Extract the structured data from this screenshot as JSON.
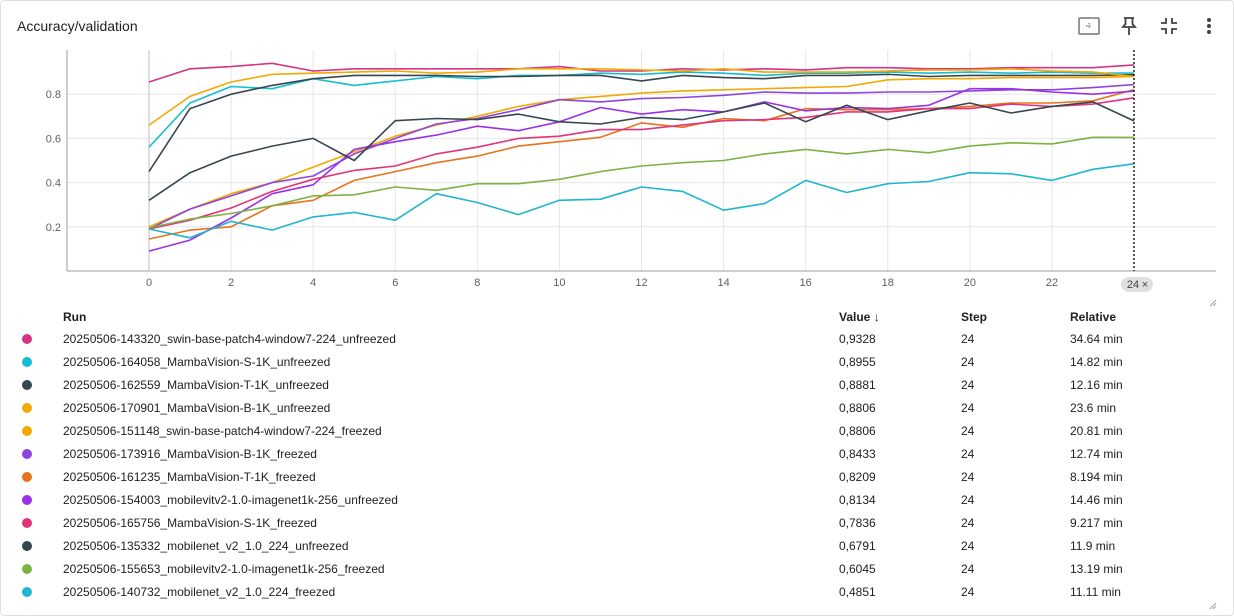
{
  "card": {
    "title": "Accuracy/validation"
  },
  "toolbar": {
    "fit_icon": "fit-domain-icon",
    "pin_icon": "pin-icon",
    "collapse_icon": "collapse-icon",
    "more_icon": "more-vert-icon"
  },
  "table": {
    "headers": {
      "run": "Run",
      "value": "Value",
      "value_sort_icon": "↓",
      "step": "Step",
      "relative": "Relative"
    },
    "rows": [
      {
        "run": "20250506-143320_swin-base-patch4-window7-224_unfreezed",
        "value": "0,9328",
        "step": "24",
        "relative": "34.64 min",
        "color": "#d63384"
      },
      {
        "run": "20250506-164058_MambaVision-S-1K_unfreezed",
        "value": "0,8955",
        "step": "24",
        "relative": "14.82 min",
        "color": "#17becf"
      },
      {
        "run": "20250506-162559_MambaVision-T-1K_unfreezed",
        "value": "0,8881",
        "step": "24",
        "relative": "12.16 min",
        "color": "#37474f"
      },
      {
        "run": "20250506-170901_MambaVision-B-1K_unfreezed",
        "value": "0,8806",
        "step": "24",
        "relative": "23.6 min",
        "color": "#f2a900"
      },
      {
        "run": "20250506-151148_swin-base-patch4-window7-224_freezed",
        "value": "0,8806",
        "step": "24",
        "relative": "20.81 min",
        "color": "#f2a900"
      },
      {
        "run": "20250506-173916_MambaVision-B-1K_freezed",
        "value": "0,8433",
        "step": "24",
        "relative": "12.74 min",
        "color": "#8e44e0"
      },
      {
        "run": "20250506-161235_MambaVision-T-1K_freezed",
        "value": "0,8209",
        "step": "24",
        "relative": "8.194 min",
        "color": "#e8731e"
      },
      {
        "run": "20250506-154003_mobilevitv2-1.0-imagenet1k-256_unfreezed",
        "value": "0,8134",
        "step": "24",
        "relative": "14.46 min",
        "color": "#9b30e8"
      },
      {
        "run": "20250506-165756_MambaVision-S-1K_freezed",
        "value": "0,7836",
        "step": "24",
        "relative": "9.217 min",
        "color": "#e3337a"
      },
      {
        "run": "20250506-135332_mobilenet_v2_1.0_224_unfreezed",
        "value": "0,6791",
        "step": "24",
        "relative": "11.9 min",
        "color": "#37474f"
      },
      {
        "run": "20250506-155653_mobilevitv2-1.0-imagenet1k-256_freezed",
        "value": "0,6045",
        "step": "24",
        "relative": "13.19 min",
        "color": "#7cb342"
      },
      {
        "run": "20250506-140732_mobilenet_v2_1.0_224_freezed",
        "value": "0,4851",
        "step": "24",
        "relative": "11.11 min",
        "color": "#1fb6cf"
      }
    ]
  },
  "chart_data": {
    "type": "line",
    "title": "Accuracy/validation",
    "x": [
      0,
      1,
      2,
      3,
      4,
      5,
      6,
      7,
      8,
      9,
      10,
      11,
      12,
      13,
      14,
      15,
      16,
      17,
      18,
      19,
      20,
      21,
      22,
      23,
      24
    ],
    "xticks": [
      0,
      2,
      4,
      6,
      8,
      10,
      12,
      14,
      16,
      18,
      20,
      22
    ],
    "yticks": [
      0.2,
      0.4,
      0.6,
      0.8
    ],
    "ytick_labels": [
      "0.2",
      "0.4",
      "0.6",
      "0.8"
    ],
    "xlim": [
      0,
      25.5
    ],
    "ylim": [
      0.0,
      1.0
    ],
    "cursor_step": 24,
    "cursor_label": "24",
    "cursor_close": "×",
    "grid": true,
    "series": [
      {
        "name": "20250506-143320_swin-base-patch4-window7-224_unfreezed",
        "color": "#d63384",
        "values": [
          0.855,
          0.915,
          0.925,
          0.94,
          0.905,
          0.915,
          0.915,
          0.915,
          0.915,
          0.915,
          0.925,
          0.905,
          0.905,
          0.915,
          0.91,
          0.915,
          0.91,
          0.92,
          0.92,
          0.915,
          0.915,
          0.92,
          0.92,
          0.92,
          0.9328
        ]
      },
      {
        "name": "20250506-164058_MambaVision-S-1K_unfreezed",
        "color": "#17becf",
        "values": [
          0.56,
          0.76,
          0.835,
          0.825,
          0.87,
          0.84,
          0.86,
          0.88,
          0.87,
          0.885,
          0.885,
          0.895,
          0.89,
          0.9,
          0.895,
          0.885,
          0.895,
          0.895,
          0.9,
          0.895,
          0.9,
          0.895,
          0.9,
          0.895,
          0.8955
        ]
      },
      {
        "name": "20250506-162559_MambaVision-T-1K_unfreezed",
        "color": "#37474f",
        "values": [
          0.45,
          0.735,
          0.8,
          0.84,
          0.87,
          0.885,
          0.885,
          0.885,
          0.88,
          0.88,
          0.885,
          0.885,
          0.86,
          0.885,
          0.875,
          0.87,
          0.885,
          0.885,
          0.89,
          0.88,
          0.885,
          0.885,
          0.885,
          0.885,
          0.8881
        ]
      },
      {
        "name": "20250506-170901_MambaVision-B-1K_unfreezed",
        "color": "#f2a900",
        "values": [
          0.66,
          0.79,
          0.855,
          0.89,
          0.895,
          0.9,
          0.905,
          0.895,
          0.9,
          0.915,
          0.915,
          0.915,
          0.91,
          0.905,
          0.915,
          0.9,
          0.9,
          0.9,
          0.905,
          0.91,
          0.91,
          0.915,
          0.905,
          0.9,
          0.8806
        ]
      },
      {
        "name": "20250506-151148_swin-base-patch4-window7-224_freezed",
        "color": "#f2a900",
        "values": [
          0.2,
          0.28,
          0.35,
          0.4,
          0.47,
          0.54,
          0.61,
          0.66,
          0.7,
          0.745,
          0.775,
          0.79,
          0.805,
          0.815,
          0.82,
          0.825,
          0.83,
          0.835,
          0.865,
          0.87,
          0.87,
          0.875,
          0.875,
          0.875,
          0.8806
        ]
      },
      {
        "name": "20250506-173916_MambaVision-B-1K_freezed",
        "color": "#8e44e0",
        "values": [
          0.19,
          0.28,
          0.34,
          0.4,
          0.43,
          0.53,
          0.6,
          0.665,
          0.69,
          0.73,
          0.775,
          0.765,
          0.78,
          0.785,
          0.795,
          0.81,
          0.805,
          0.805,
          0.81,
          0.81,
          0.815,
          0.82,
          0.82,
          0.83,
          0.8433
        ]
      },
      {
        "name": "20250506-161235_MambaVision-T-1K_freezed",
        "color": "#e8731e",
        "values": [
          0.145,
          0.185,
          0.2,
          0.295,
          0.32,
          0.41,
          0.45,
          0.49,
          0.52,
          0.565,
          0.585,
          0.605,
          0.67,
          0.65,
          0.69,
          0.68,
          0.735,
          0.73,
          0.73,
          0.735,
          0.745,
          0.76,
          0.76,
          0.77,
          0.8209
        ]
      },
      {
        "name": "20250506-154003_mobilevitv2-1.0-imagenet1k-256_unfreezed",
        "color": "#9b30e8",
        "values": [
          0.09,
          0.14,
          0.24,
          0.35,
          0.39,
          0.55,
          0.585,
          0.615,
          0.655,
          0.635,
          0.675,
          0.74,
          0.71,
          0.73,
          0.72,
          0.765,
          0.725,
          0.74,
          0.735,
          0.75,
          0.825,
          0.825,
          0.81,
          0.8,
          0.8134
        ]
      },
      {
        "name": "20250506-165756_MambaVision-S-1K_freezed",
        "color": "#e3337a",
        "values": [
          0.19,
          0.23,
          0.285,
          0.36,
          0.415,
          0.455,
          0.475,
          0.53,
          0.56,
          0.6,
          0.61,
          0.64,
          0.64,
          0.66,
          0.68,
          0.685,
          0.695,
          0.72,
          0.72,
          0.735,
          0.735,
          0.755,
          0.745,
          0.755,
          0.7836
        ]
      },
      {
        "name": "20250506-135332_mobilenet_v2_1.0_224_unfreezed",
        "color": "#37474f",
        "values": [
          0.32,
          0.445,
          0.52,
          0.565,
          0.6,
          0.5,
          0.68,
          0.69,
          0.685,
          0.71,
          0.675,
          0.665,
          0.695,
          0.685,
          0.72,
          0.76,
          0.675,
          0.75,
          0.685,
          0.725,
          0.76,
          0.715,
          0.745,
          0.765,
          0.6791
        ]
      },
      {
        "name": "20250506-155653_mobilevitv2-1.0-imagenet1k-256_freezed",
        "color": "#7cb342",
        "values": [
          0.195,
          0.235,
          0.26,
          0.295,
          0.34,
          0.345,
          0.38,
          0.365,
          0.395,
          0.395,
          0.415,
          0.45,
          0.475,
          0.49,
          0.5,
          0.53,
          0.55,
          0.53,
          0.55,
          0.535,
          0.565,
          0.58,
          0.575,
          0.605,
          0.6045
        ]
      },
      {
        "name": "20250506-140732_mobilenet_v2_1.0_224_freezed",
        "color": "#1fb6cf",
        "values": [
          0.19,
          0.15,
          0.225,
          0.185,
          0.245,
          0.265,
          0.23,
          0.35,
          0.31,
          0.255,
          0.32,
          0.325,
          0.38,
          0.36,
          0.275,
          0.305,
          0.41,
          0.355,
          0.395,
          0.405,
          0.445,
          0.44,
          0.41,
          0.46,
          0.4851
        ]
      }
    ]
  }
}
